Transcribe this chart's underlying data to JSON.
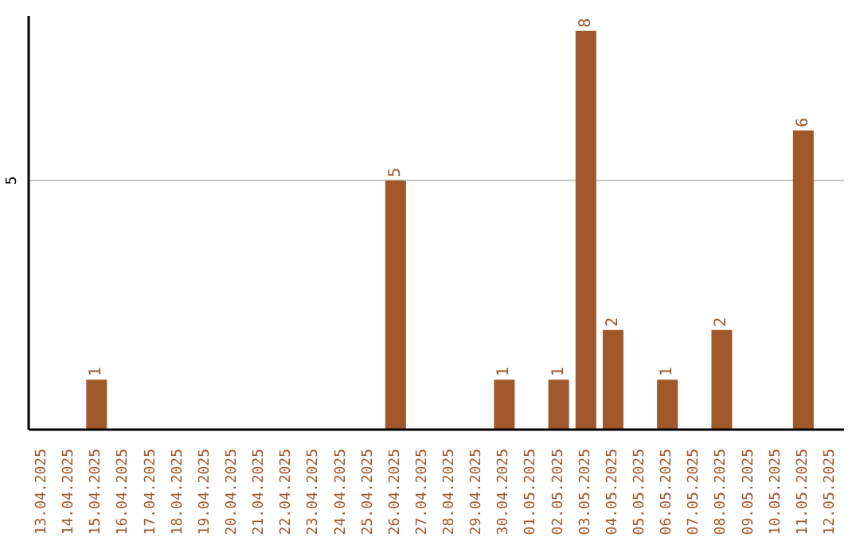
{
  "chart_data": {
    "type": "bar",
    "categories": [
      "13.04.2025",
      "14.04.2025",
      "15.04.2025",
      "16.04.2025",
      "17.04.2025",
      "18.04.2025",
      "19.04.2025",
      "20.04.2025",
      "21.04.2025",
      "22.04.2025",
      "23.04.2025",
      "24.04.2025",
      "25.04.2025",
      "26.04.2025",
      "27.04.2025",
      "28.04.2025",
      "29.04.2025",
      "30.04.2025",
      "01.05.2025",
      "02.05.2025",
      "03.05.2025",
      "04.05.2025",
      "05.05.2025",
      "06.05.2025",
      "07.05.2025",
      "08.05.2025",
      "09.05.2025",
      "10.05.2025",
      "11.05.2025",
      "12.05.2025"
    ],
    "values": [
      0,
      0,
      1,
      0,
      0,
      0,
      0,
      0,
      0,
      0,
      0,
      0,
      0,
      5,
      0,
      0,
      0,
      1,
      0,
      1,
      8,
      2,
      0,
      1,
      0,
      2,
      0,
      0,
      6,
      0
    ],
    "value_labels": [
      null,
      null,
      "1",
      null,
      null,
      null,
      null,
      null,
      null,
      null,
      null,
      null,
      null,
      "5",
      null,
      null,
      null,
      "1",
      null,
      "1",
      "8",
      "2",
      null,
      "1",
      null,
      "2",
      null,
      null,
      "6",
      null
    ],
    "color": "#a0582a",
    "ylim": [
      0,
      8.3
    ],
    "yticks": [
      5
    ],
    "grid": "y"
  }
}
